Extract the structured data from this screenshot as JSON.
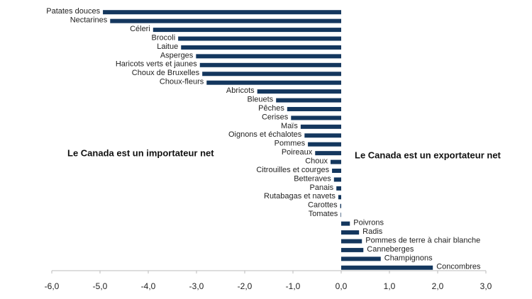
{
  "chart_data": {
    "type": "bar",
    "orientation": "horizontal",
    "color": "#14375e",
    "categories": [
      "Patates douces",
      "Nectarines",
      "Céleri",
      "Brocoli",
      "Laitue",
      "Asperges",
      "Haricots verts et jaunes",
      "Choux de Bruxelles",
      "Choux-fleurs",
      "Abricots",
      "Bleuets",
      "Pêches",
      "Cerises",
      "Maïs",
      "Oignons et échalotes",
      "Pommes",
      "Poireaux",
      "Choux",
      "Citrouilles et courges",
      "Betteraves",
      "Panais",
      "Rutabagas et navets",
      "Carottes",
      "Tomates",
      "Poivrons",
      "Radis",
      "Pommes de terre à chair blanche",
      "Canneberges",
      "Champignons",
      "Concombres"
    ],
    "values": [
      -4.94,
      -4.79,
      -3.9,
      -3.38,
      -3.32,
      -3.01,
      -2.93,
      -2.88,
      -2.79,
      -1.74,
      -1.35,
      -1.12,
      -1.04,
      -0.84,
      -0.76,
      -0.69,
      -0.54,
      -0.22,
      -0.19,
      -0.15,
      -0.1,
      -0.06,
      -0.02,
      -0.01,
      0.18,
      0.37,
      0.43,
      0.46,
      0.82,
      1.9
    ],
    "xlim": [
      -6,
      3
    ],
    "xticks": [
      {
        "value": -6,
        "label": "-6,0"
      },
      {
        "value": -5,
        "label": "-5,0"
      },
      {
        "value": -4,
        "label": "-4,0"
      },
      {
        "value": -3,
        "label": "-3,0"
      },
      {
        "value": -2,
        "label": "-2,0"
      },
      {
        "value": -1,
        "label": "-1,0"
      },
      {
        "value": 0,
        "label": "0,0"
      },
      {
        "value": 1,
        "label": "1,0"
      },
      {
        "value": 2,
        "label": "2,0"
      },
      {
        "value": 3,
        "label": "3,0"
      }
    ],
    "annotations": [
      "Le Canada est un importateur net",
      "Le Canada est un exportateur net"
    ]
  }
}
